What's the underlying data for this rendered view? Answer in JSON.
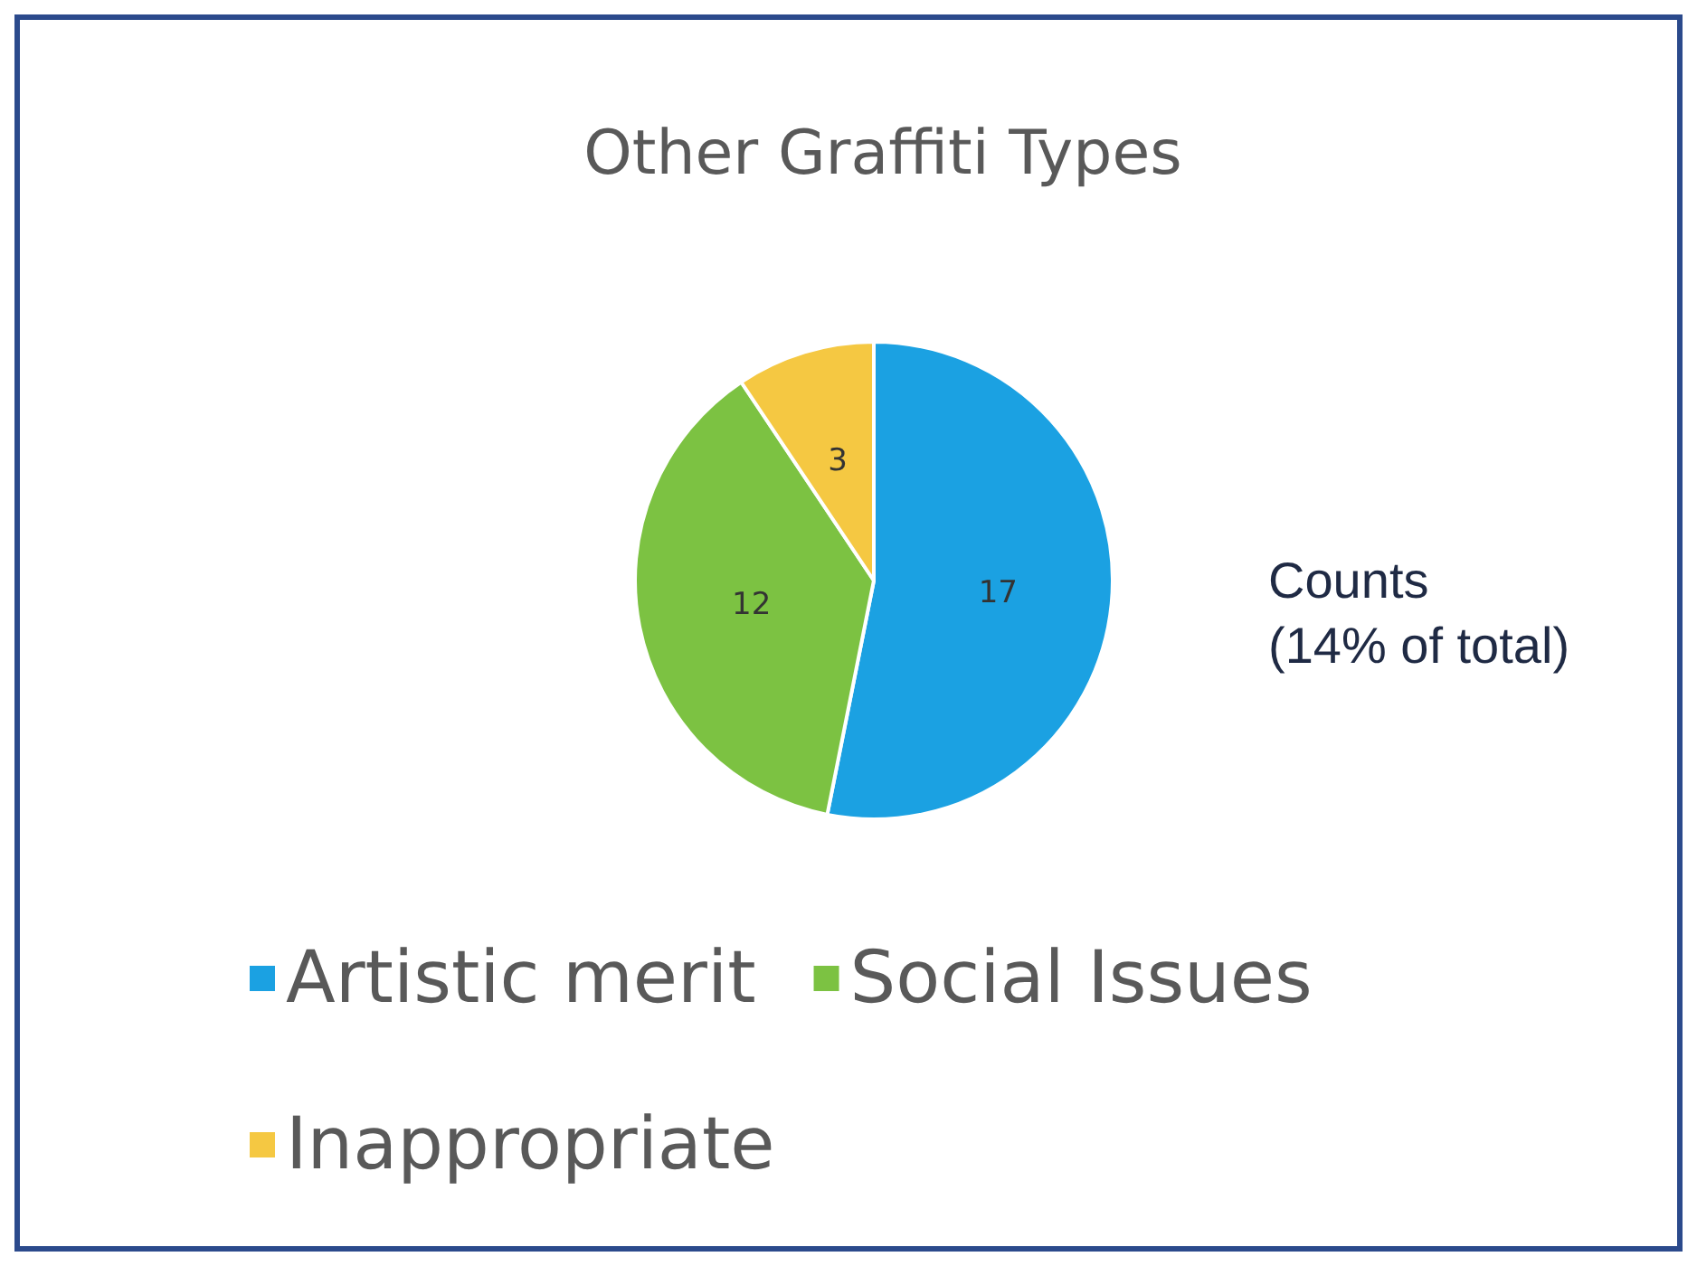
{
  "chart_data": {
    "type": "pie",
    "title": "Other Graffiti Types",
    "categories": [
      "Artistic merit",
      "Social Issues",
      "Inappropriate"
    ],
    "values": [
      17,
      12,
      3
    ],
    "colors": [
      "#1ba1e2",
      "#7cc242",
      "#f5c842"
    ],
    "data_labels": true,
    "legend": "bottom",
    "annotations": [
      "Counts\n(14% of total)"
    ]
  }
}
